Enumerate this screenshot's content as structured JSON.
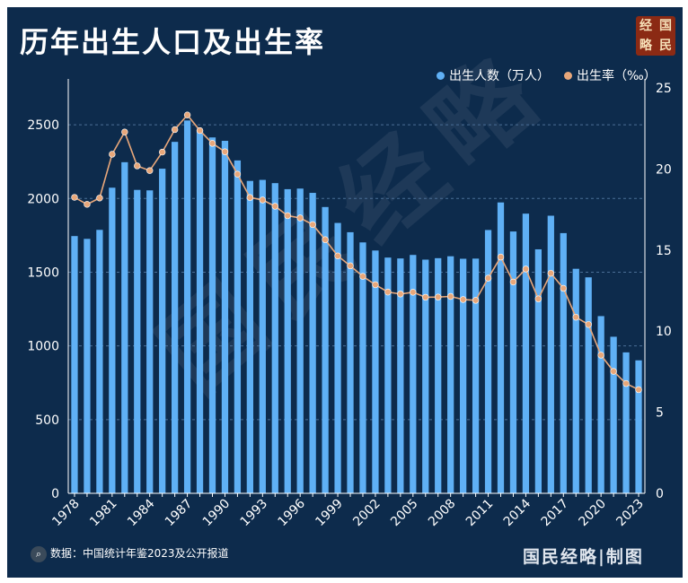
{
  "title": "历年出生人口及出生率",
  "seal": [
    "经",
    "国",
    "略",
    "民"
  ],
  "watermark": "国民经略",
  "legend": {
    "bars_label": "出生人数（万人）",
    "line_label": "出生率（‰）"
  },
  "source": {
    "icon_label": "⌕",
    "text": "数据：中国统计年鉴2023及公开报道"
  },
  "brand": "国民经略|制图",
  "colors": {
    "background": "#0d2b4c",
    "bar": "#5fb0f5",
    "line": "#e8a77a",
    "grid": "#4b6f96"
  },
  "chart_data": {
    "type": "bar",
    "x": [
      1978,
      1979,
      1980,
      1981,
      1982,
      1983,
      1984,
      1985,
      1986,
      1987,
      1988,
      1989,
      1990,
      1991,
      1992,
      1993,
      1994,
      1995,
      1996,
      1997,
      1998,
      1999,
      2000,
      2001,
      2002,
      2003,
      2004,
      2005,
      2006,
      2007,
      2008,
      2009,
      2010,
      2011,
      2012,
      2013,
      2014,
      2015,
      2016,
      2017,
      2018,
      2019,
      2020,
      2021,
      2022,
      2023
    ],
    "x_tick_labels": [
      "1978",
      "1981",
      "1984",
      "1987",
      "1990",
      "1993",
      "1996",
      "1999",
      "2002",
      "2005",
      "2008",
      "2011",
      "2014",
      "2017",
      "2020",
      "2023"
    ],
    "series": [
      {
        "name": "出生人数（万人）",
        "type": "bar",
        "axis": "left",
        "values": [
          1745,
          1726,
          1787,
          2073,
          2246,
          2058,
          2055,
          2202,
          2384,
          2529,
          2464,
          2414,
          2391,
          2258,
          2119,
          2126,
          2104,
          2063,
          2067,
          2038,
          1942,
          1834,
          1771,
          1702,
          1647,
          1599,
          1593,
          1617,
          1585,
          1595,
          1608,
          1591,
          1592,
          1786,
          1973,
          1776,
          1897,
          1655,
          1883,
          1765,
          1523,
          1465,
          1202,
          1062,
          956,
          902
        ]
      },
      {
        "name": "出生率（‰）",
        "type": "line",
        "axis": "right",
        "values": [
          18.25,
          17.82,
          18.21,
          20.91,
          22.28,
          20.19,
          19.9,
          21.04,
          22.43,
          23.33,
          22.37,
          21.58,
          21.06,
          19.68,
          18.24,
          18.09,
          17.7,
          17.12,
          16.98,
          16.57,
          15.64,
          14.64,
          14.03,
          13.38,
          12.86,
          12.41,
          12.29,
          12.4,
          12.09,
          12.1,
          12.14,
          11.95,
          11.9,
          13.27,
          14.57,
          13.03,
          13.83,
          11.99,
          13.57,
          12.64,
          10.86,
          10.41,
          8.52,
          7.52,
          6.77,
          6.39
        ]
      }
    ],
    "y_left": {
      "ylim": [
        0,
        2750
      ],
      "ticks": [
        0,
        500,
        1000,
        1500,
        2000,
        2500
      ]
    },
    "y_right": {
      "ylim": [
        0,
        25
      ],
      "ticks": [
        0,
        5,
        10,
        15,
        20,
        25
      ]
    },
    "grid": "horizontal dashed",
    "legend_position": "top-right"
  }
}
